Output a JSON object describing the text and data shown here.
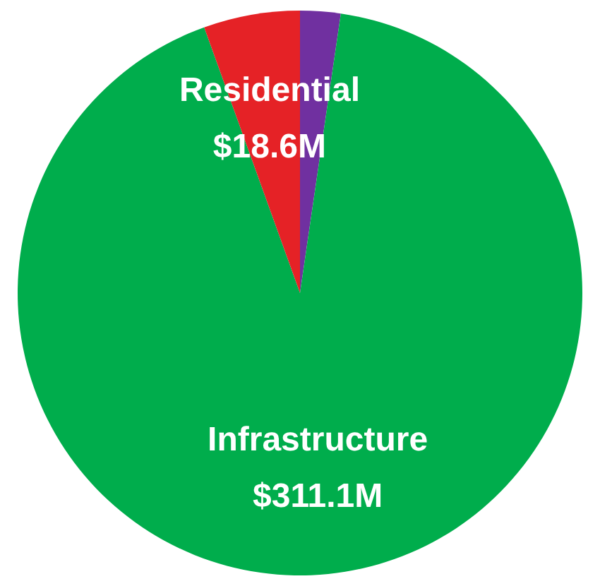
{
  "chart_data": {
    "type": "pie",
    "categories": [
      null,
      "Infrastructure",
      "Residential"
    ],
    "values": [
      7.8,
      311.1,
      18.6
    ],
    "colors": [
      "#7030a0",
      "#00ad4c",
      "#e52226"
    ],
    "value_labels": [
      null,
      "$311.1M",
      "$18.6M"
    ]
  }
}
